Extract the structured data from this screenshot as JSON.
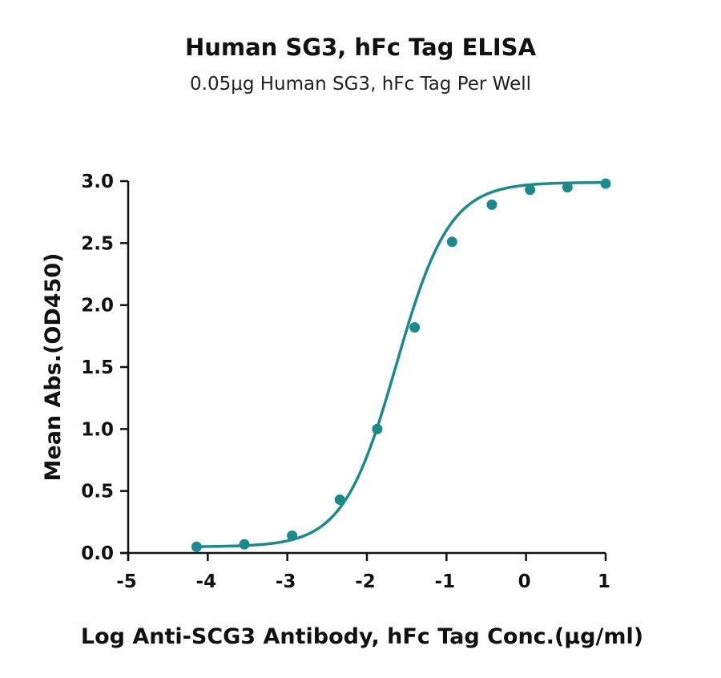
{
  "chart_data": {
    "type": "scatter",
    "title": "Human SG3, hFc Tag ELISA",
    "subtitle": "0.05μg Human SG3, hFc Tag Per Well",
    "xlabel": "Log Anti-SCG3 Antibody, hFc Tag Conc.(μg/ml)",
    "ylabel": "Mean Abs.(OD450)",
    "xlim": [
      -5,
      1
    ],
    "ylim": [
      0,
      3
    ],
    "x_ticks": [
      -5,
      -4,
      -3,
      -2,
      -1,
      0,
      1
    ],
    "x_tick_labels": [
      "-5",
      "-4",
      "-3",
      "-2",
      "-1",
      "0",
      "1"
    ],
    "y_ticks": [
      0,
      0.5,
      1,
      1.5,
      2,
      2.5,
      3
    ],
    "y_tick_labels": [
      "0.0",
      "0.5",
      "1.0",
      "1.5",
      "2.0",
      "2.5",
      "3.0"
    ],
    "grid": false,
    "series": [
      {
        "color": "#1a8a8c",
        "x": [
          -4.14,
          -3.54,
          -2.94,
          -2.34,
          -1.87,
          -1.4,
          -0.93,
          -0.43,
          0.05,
          0.52,
          1.0
        ],
        "y": [
          0.05,
          0.07,
          0.14,
          0.43,
          1.0,
          1.82,
          2.51,
          2.81,
          2.93,
          2.95,
          2.98
        ],
        "fit": {
          "model": "4PL",
          "bottom": 0.05,
          "top": 2.99,
          "logEC50": -1.63,
          "hill": 1.3
        }
      }
    ]
  }
}
